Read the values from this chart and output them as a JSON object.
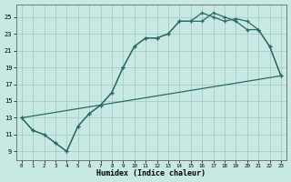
{
  "xlabel": "Humidex (Indice chaleur)",
  "background_color": "#c8e8e4",
  "grid_color": "#a8ccc8",
  "line_color": "#2a6b60",
  "xlim": [
    -0.5,
    23.5
  ],
  "ylim": [
    8.0,
    26.5
  ],
  "xticks": [
    0,
    1,
    2,
    3,
    4,
    5,
    6,
    7,
    8,
    9,
    10,
    11,
    12,
    13,
    14,
    15,
    16,
    17,
    18,
    19,
    20,
    21,
    22,
    23
  ],
  "yticks": [
    9,
    11,
    13,
    15,
    17,
    19,
    21,
    23,
    25
  ],
  "curve1_x": [
    0,
    1,
    2,
    3,
    4,
    5,
    6,
    7,
    8,
    9,
    10,
    11,
    12,
    13,
    14,
    15,
    16,
    17,
    18,
    19,
    20,
    21,
    22,
    23
  ],
  "curve1_y": [
    13,
    11.5,
    11,
    10,
    9,
    12,
    13.5,
    14.5,
    16,
    19,
    21.5,
    22.5,
    22.5,
    23,
    24.5,
    24.5,
    24.5,
    25.5,
    25,
    24.5,
    23.5,
    23.5,
    21.5,
    18
  ],
  "curve2_x": [
    0,
    1,
    2,
    3,
    4,
    5,
    6,
    7,
    8,
    9,
    10,
    11,
    12,
    13,
    14,
    15,
    16,
    17,
    18,
    19,
    20,
    21,
    22,
    23
  ],
  "curve2_y": [
    13,
    11.5,
    11,
    10,
    9,
    12,
    13.5,
    14.5,
    16,
    19,
    21.5,
    22.5,
    22.5,
    23,
    24.5,
    24.5,
    25.5,
    25,
    24.5,
    24.8,
    24.5,
    23.5,
    21.5,
    18
  ],
  "line3_x": [
    0,
    23
  ],
  "line3_y": [
    13,
    18
  ]
}
